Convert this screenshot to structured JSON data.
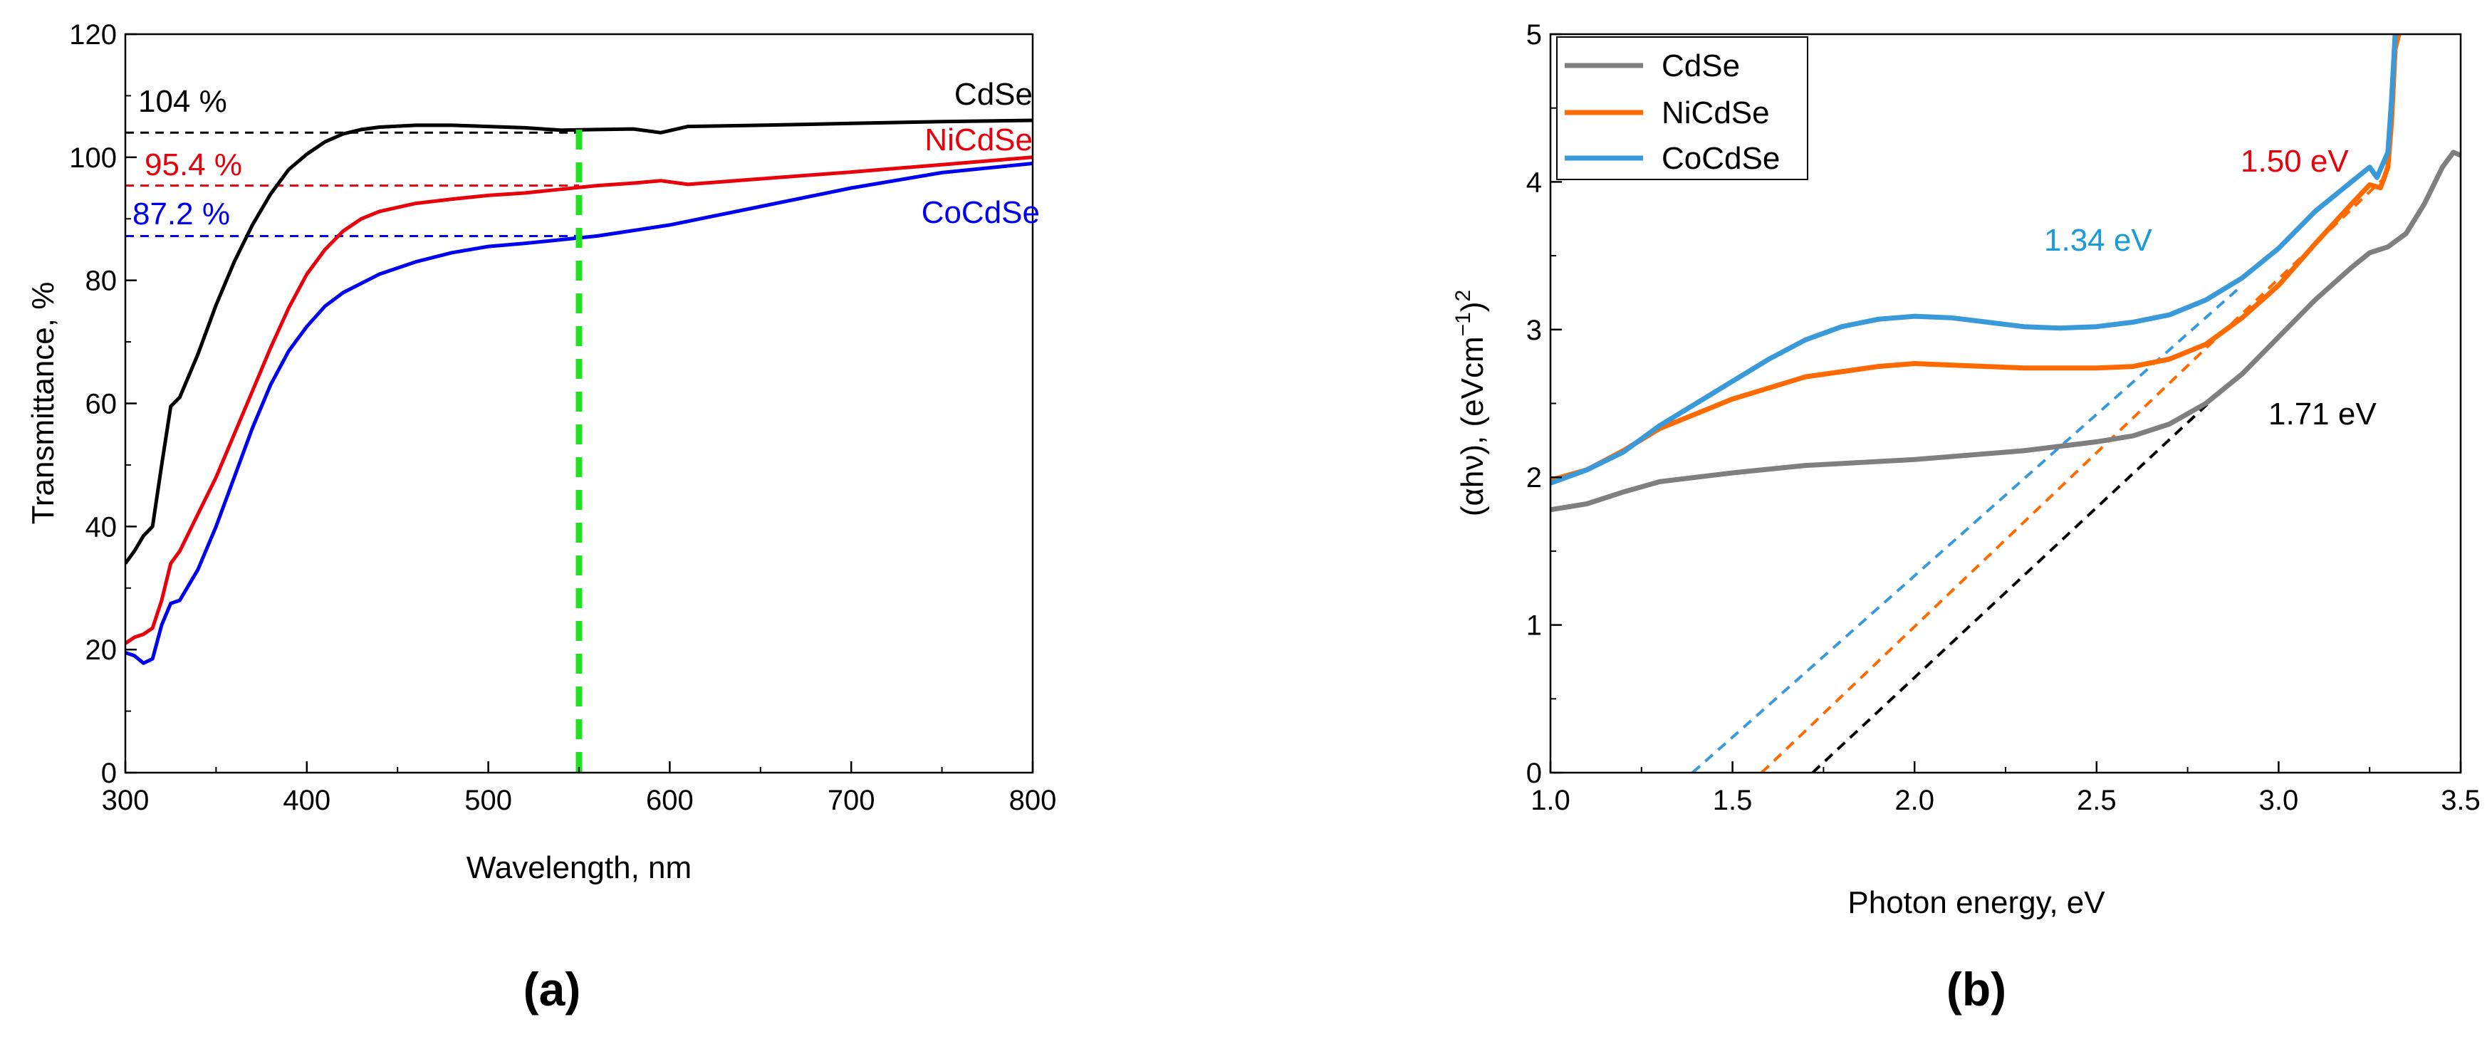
{
  "chart_data": [
    {
      "panel": "a",
      "caption": "(a)",
      "type": "line",
      "xlabel": "Wavelength, nm",
      "ylabel": "Transmittance, %",
      "xlim": [
        300,
        800
      ],
      "ylim": [
        0,
        120
      ],
      "xticks": [
        300,
        400,
        500,
        600,
        700,
        800
      ],
      "yticks": [
        0,
        20,
        40,
        60,
        80,
        100,
        120
      ],
      "grid": false,
      "series": [
        {
          "name": "CdSe",
          "color": "#000000",
          "points": [
            [
              300,
              34
            ],
            [
              305,
              36
            ],
            [
              310,
              38.5
            ],
            [
              315,
              40
            ],
            [
              320,
              50
            ],
            [
              325,
              59.5
            ],
            [
              330,
              61
            ],
            [
              340,
              68
            ],
            [
              350,
              76
            ],
            [
              360,
              83
            ],
            [
              370,
              89
            ],
            [
              380,
              94
            ],
            [
              390,
              98
            ],
            [
              400,
              100.5
            ],
            [
              410,
              102.5
            ],
            [
              420,
              103.8
            ],
            [
              430,
              104.5
            ],
            [
              440,
              104.9
            ],
            [
              460,
              105.2
            ],
            [
              480,
              105.2
            ],
            [
              500,
              105.0
            ],
            [
              520,
              104.8
            ],
            [
              540,
              104.4
            ],
            [
              560,
              104.5
            ],
            [
              580,
              104.6
            ],
            [
              595,
              104.0
            ],
            [
              610,
              105.0
            ],
            [
              650,
              105.2
            ],
            [
              700,
              105.5
            ],
            [
              750,
              105.8
            ],
            [
              800,
              106.0
            ]
          ]
        },
        {
          "name": "NiCdSe",
          "color": "#e8000b",
          "points": [
            [
              300,
              21
            ],
            [
              305,
              22
            ],
            [
              310,
              22.5
            ],
            [
              315,
              23.5
            ],
            [
              320,
              28
            ],
            [
              325,
              34
            ],
            [
              330,
              36
            ],
            [
              340,
              42
            ],
            [
              350,
              48
            ],
            [
              360,
              55
            ],
            [
              370,
              62
            ],
            [
              380,
              69
            ],
            [
              390,
              75.5
            ],
            [
              400,
              81
            ],
            [
              410,
              85
            ],
            [
              420,
              88
            ],
            [
              430,
              90
            ],
            [
              440,
              91.2
            ],
            [
              460,
              92.5
            ],
            [
              480,
              93.2
            ],
            [
              500,
              93.8
            ],
            [
              520,
              94.2
            ],
            [
              540,
              94.8
            ],
            [
              560,
              95.4
            ],
            [
              580,
              95.8
            ],
            [
              595,
              96.2
            ],
            [
              610,
              95.6
            ],
            [
              650,
              96.5
            ],
            [
              700,
              97.6
            ],
            [
              750,
              98.8
            ],
            [
              800,
              100.0
            ]
          ]
        },
        {
          "name": "CoCdSe",
          "color": "#0000f0",
          "points": [
            [
              300,
              19.5
            ],
            [
              305,
              19
            ],
            [
              310,
              17.8
            ],
            [
              315,
              18.5
            ],
            [
              320,
              24
            ],
            [
              325,
              27.5
            ],
            [
              330,
              28
            ],
            [
              340,
              33
            ],
            [
              350,
              40
            ],
            [
              360,
              48
            ],
            [
              370,
              56
            ],
            [
              380,
              63
            ],
            [
              390,
              68.5
            ],
            [
              400,
              72.5
            ],
            [
              410,
              75.8
            ],
            [
              420,
              78
            ],
            [
              440,
              81
            ],
            [
              460,
              83
            ],
            [
              480,
              84.5
            ],
            [
              500,
              85.5
            ],
            [
              520,
              86
            ],
            [
              540,
              86.6
            ],
            [
              560,
              87.2
            ],
            [
              600,
              89
            ],
            [
              650,
              92
            ],
            [
              700,
              95
            ],
            [
              750,
              97.5
            ],
            [
              800,
              99
            ]
          ]
        }
      ],
      "reference_lines": [
        {
          "label": "104 %",
          "value": 104,
          "color": "#000000"
        },
        {
          "label": "95.4 %",
          "value": 95.4,
          "color": "#e8000b"
        },
        {
          "label": "87.2 %",
          "value": 87.2,
          "color": "#0000f0"
        }
      ],
      "vertical_marker": {
        "x": 550,
        "color": "#22e022"
      },
      "series_labels": [
        {
          "text": "CdSe",
          "color": "#000000"
        },
        {
          "text": "NiCdSe",
          "color": "#e8000b"
        },
        {
          "text": "CoCdSe",
          "color": "#0000f0"
        }
      ]
    },
    {
      "panel": "b",
      "caption": "(b)",
      "type": "line",
      "xlabel": "Photon energy, eV",
      "ylabel_parts": [
        "(αhν),  (eVcm",
        "−1",
        ")",
        "2"
      ],
      "xlim": [
        1.0,
        3.5
      ],
      "ylim": [
        0,
        5
      ],
      "xticks": [
        "1.0",
        "1.5",
        "2.0",
        "2.5",
        "3.0",
        "3.5"
      ],
      "yticks": [
        "0",
        "1",
        "2",
        "3",
        "4",
        "5"
      ],
      "grid": false,
      "legend": {
        "position": "top-left",
        "entries": [
          "CdSe",
          "NiCdSe",
          "CoCdSe"
        ]
      },
      "series": [
        {
          "name": "CdSe",
          "color": "#7f7f7f",
          "points": [
            [
              1.0,
              1.78
            ],
            [
              1.1,
              1.82
            ],
            [
              1.2,
              1.9
            ],
            [
              1.3,
              1.97
            ],
            [
              1.5,
              2.03
            ],
            [
              1.7,
              2.08
            ],
            [
              2.0,
              2.12
            ],
            [
              2.3,
              2.18
            ],
            [
              2.5,
              2.24
            ],
            [
              2.6,
              2.28
            ],
            [
              2.7,
              2.36
            ],
            [
              2.8,
              2.5
            ],
            [
              2.9,
              2.7
            ],
            [
              3.0,
              2.95
            ],
            [
              3.1,
              3.2
            ],
            [
              3.2,
              3.42
            ],
            [
              3.25,
              3.52
            ],
            [
              3.3,
              3.56
            ],
            [
              3.35,
              3.65
            ],
            [
              3.4,
              3.85
            ],
            [
              3.45,
              4.1
            ],
            [
              3.48,
              4.2
            ],
            [
              3.5,
              4.18
            ]
          ]
        },
        {
          "name": "NiCdSe",
          "color": "#ff6a00",
          "points": [
            [
              1.0,
              1.98
            ],
            [
              1.1,
              2.05
            ],
            [
              1.2,
              2.18
            ],
            [
              1.3,
              2.33
            ],
            [
              1.5,
              2.53
            ],
            [
              1.7,
              2.68
            ],
            [
              1.9,
              2.75
            ],
            [
              2.0,
              2.77
            ],
            [
              2.1,
              2.76
            ],
            [
              2.3,
              2.74
            ],
            [
              2.5,
              2.74
            ],
            [
              2.6,
              2.75
            ],
            [
              2.7,
              2.8
            ],
            [
              2.8,
              2.9
            ],
            [
              2.9,
              3.08
            ],
            [
              3.0,
              3.3
            ],
            [
              3.1,
              3.58
            ],
            [
              3.2,
              3.85
            ],
            [
              3.25,
              3.98
            ],
            [
              3.28,
              3.96
            ],
            [
              3.3,
              4.1
            ],
            [
              3.31,
              4.4
            ],
            [
              3.32,
              4.9
            ],
            [
              3.33,
              5.0
            ]
          ]
        },
        {
          "name": "CoCdSe",
          "color": "#3a9ad9",
          "points": [
            [
              1.0,
              1.96
            ],
            [
              1.1,
              2.05
            ],
            [
              1.2,
              2.17
            ],
            [
              1.3,
              2.35
            ],
            [
              1.4,
              2.5
            ],
            [
              1.5,
              2.65
            ],
            [
              1.6,
              2.8
            ],
            [
              1.7,
              2.93
            ],
            [
              1.8,
              3.02
            ],
            [
              1.9,
              3.07
            ],
            [
              2.0,
              3.09
            ],
            [
              2.1,
              3.08
            ],
            [
              2.2,
              3.05
            ],
            [
              2.3,
              3.02
            ],
            [
              2.4,
              3.01
            ],
            [
              2.5,
              3.02
            ],
            [
              2.6,
              3.05
            ],
            [
              2.7,
              3.1
            ],
            [
              2.8,
              3.2
            ],
            [
              2.9,
              3.35
            ],
            [
              3.0,
              3.55
            ],
            [
              3.1,
              3.8
            ],
            [
              3.2,
              4.0
            ],
            [
              3.25,
              4.1
            ],
            [
              3.27,
              4.03
            ],
            [
              3.3,
              4.2
            ],
            [
              3.31,
              4.55
            ],
            [
              3.32,
              5.0
            ]
          ]
        }
      ],
      "fit_lines": [
        {
          "color": "#3a9ad9",
          "x": [
            1.39,
            2.9
          ],
          "y": [
            0,
            3.3
          ]
        },
        {
          "color": "#ff6a00",
          "x": [
            1.58,
            3.3
          ],
          "y": [
            0,
            4.05
          ]
        },
        {
          "color": "#000000",
          "x": [
            1.72,
            2.85
          ],
          "y": [
            0,
            2.6
          ]
        }
      ],
      "annotations": [
        {
          "text": "1.34 eV",
          "color": "#1a9ad9"
        },
        {
          "text": "1.50 eV",
          "color": "#e8000b"
        },
        {
          "text": "1.71 eV",
          "color": "#000000"
        }
      ]
    }
  ]
}
